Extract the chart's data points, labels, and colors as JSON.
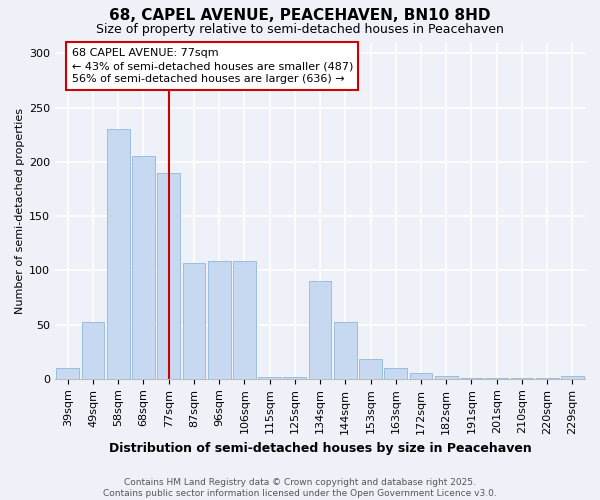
{
  "title1": "68, CAPEL AVENUE, PEACEHAVEN, BN10 8HD",
  "title2": "Size of property relative to semi-detached houses in Peacehaven",
  "xlabel": "Distribution of semi-detached houses by size in Peacehaven",
  "ylabel": "Number of semi-detached properties",
  "categories": [
    "39sqm",
    "49sqm",
    "58sqm",
    "68sqm",
    "77sqm",
    "87sqm",
    "96sqm",
    "106sqm",
    "115sqm",
    "125sqm",
    "134sqm",
    "144sqm",
    "153sqm",
    "163sqm",
    "172sqm",
    "182sqm",
    "191sqm",
    "201sqm",
    "210sqm",
    "220sqm",
    "229sqm"
  ],
  "values": [
    10,
    52,
    230,
    205,
    190,
    107,
    109,
    109,
    2,
    2,
    90,
    52,
    18,
    10,
    5,
    3,
    1,
    1,
    1,
    1,
    3
  ],
  "bar_color": "#c6d9f0",
  "bar_edge_color": "#8fb8d8",
  "vline_color": "#cc0000",
  "annotation_box_color": "#cc0000",
  "ylim": [
    0,
    310
  ],
  "yticks": [
    0,
    50,
    100,
    150,
    200,
    250,
    300
  ],
  "property_label": "68 CAPEL AVENUE: 77sqm",
  "pct_smaller": 43,
  "pct_larger": 56,
  "n_smaller": 487,
  "n_larger": 636,
  "footer1": "Contains HM Land Registry data © Crown copyright and database right 2025.",
  "footer2": "Contains public sector information licensed under the Open Government Licence v3.0.",
  "bg_color": "#eef2f8",
  "grid_color": "#ffffff",
  "title1_fontsize": 11,
  "title2_fontsize": 9,
  "xlabel_fontsize": 9,
  "ylabel_fontsize": 8,
  "tick_fontsize": 8,
  "annot_fontsize": 8,
  "footer_fontsize": 6.5
}
